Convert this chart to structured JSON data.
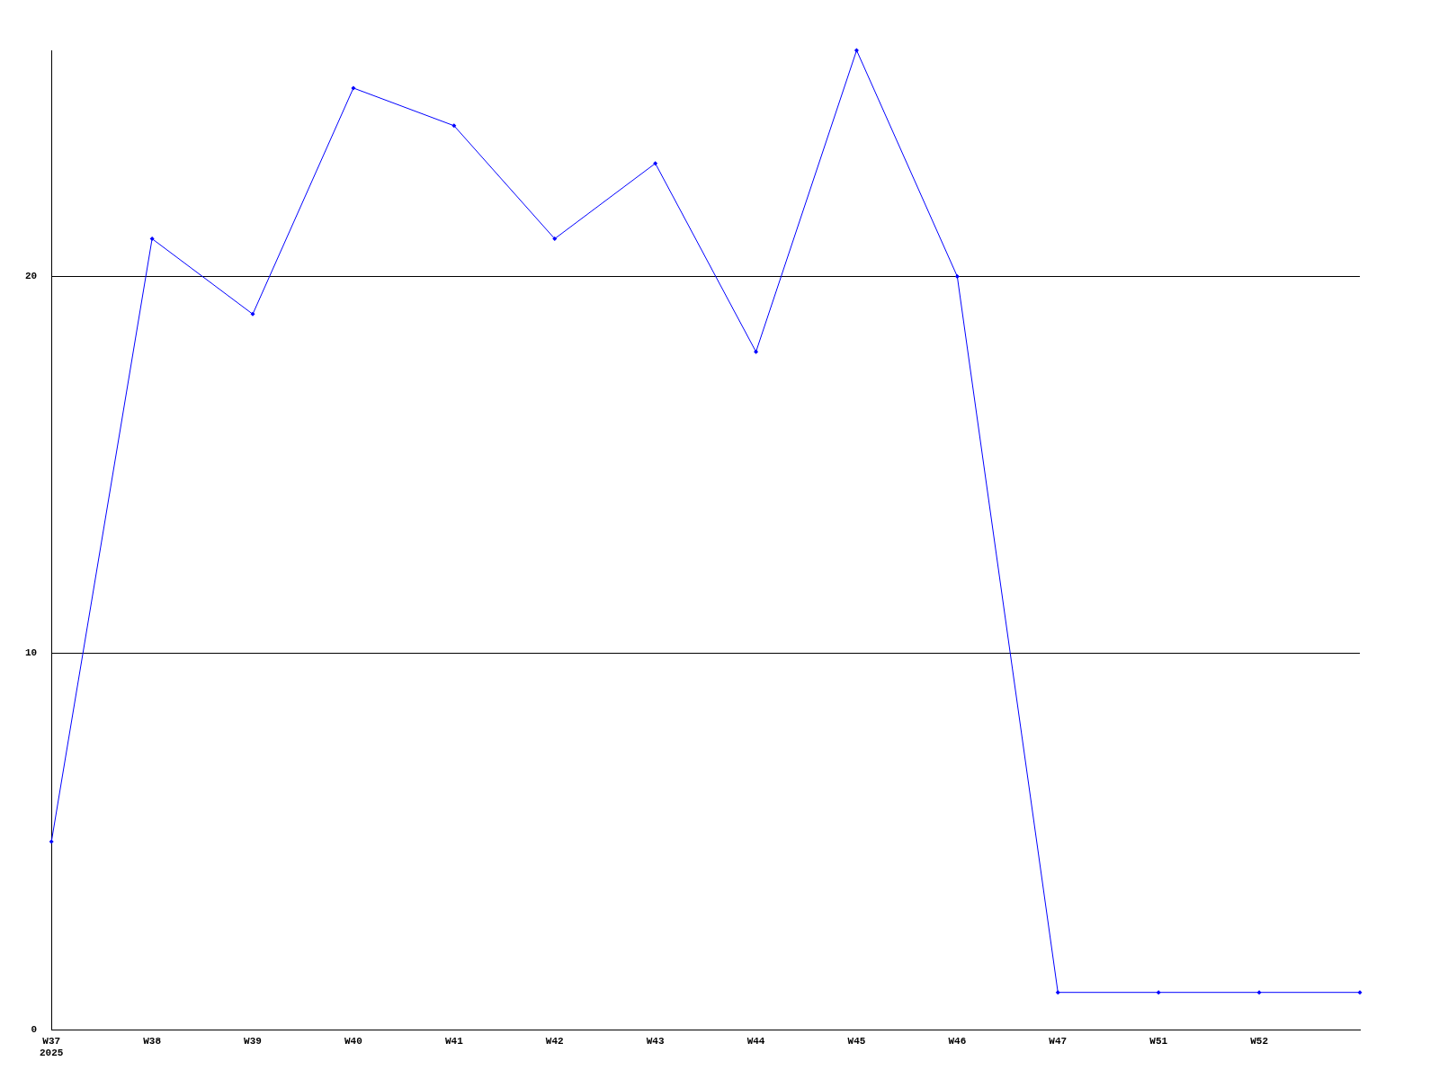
{
  "chart_data": {
    "type": "line",
    "categories": [
      "W37\n2025",
      "W38",
      "W39",
      "W40",
      "W41",
      "W42",
      "W43",
      "W44",
      "W45",
      "W46",
      "W47",
      "W51",
      "W52",
      null
    ],
    "series": [
      {
        "color": "#0000ff",
        "values": [
          5,
          21,
          19,
          25,
          24,
          21,
          23,
          18,
          26,
          20,
          1,
          1,
          1,
          1
        ]
      }
    ],
    "ylim": [
      0,
      26
    ],
    "yticks": [
      0,
      10,
      20
    ],
    "grid": "y",
    "legend": false,
    "marker": "diamond",
    "line_style": "solid"
  }
}
